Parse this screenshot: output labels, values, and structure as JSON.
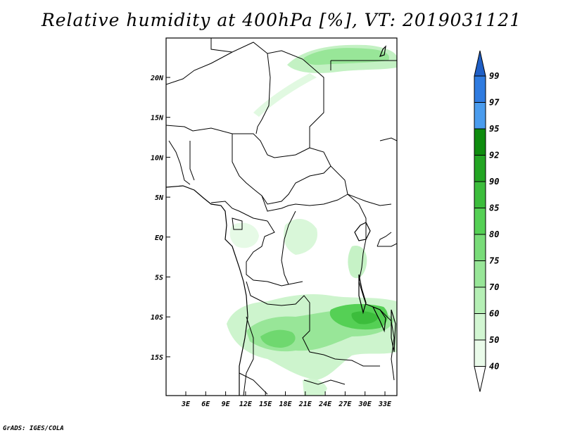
{
  "title": "Relative humidity at 400hPa [%], VT: 2019031121",
  "credit": "GrADS: IGES/COLA",
  "map": {
    "variable": "Relative humidity",
    "level": "400hPa",
    "units": "%",
    "valid_time": "2019031121",
    "lat_labels": [
      "20N",
      "15N",
      "10N",
      "5N",
      "EQ",
      "5S",
      "10S",
      "15S"
    ],
    "lon_labels": [
      "3E",
      "6E",
      "9E",
      "12E",
      "15E",
      "18E",
      "21E",
      "24E",
      "27E",
      "30E",
      "33E"
    ]
  },
  "colorbar": {
    "levels": [
      "99",
      "97",
      "95",
      "92",
      "90",
      "85",
      "80",
      "75",
      "70",
      "60",
      "50",
      "40"
    ],
    "colors": [
      "#1f5fc6",
      "#2f7be0",
      "#4a9cee",
      "#0e8c0e",
      "#23a523",
      "#3cbd3c",
      "#55d055",
      "#79dc79",
      "#98e698",
      "#b5efb5",
      "#d2f6d2",
      "#eafbea"
    ]
  }
}
